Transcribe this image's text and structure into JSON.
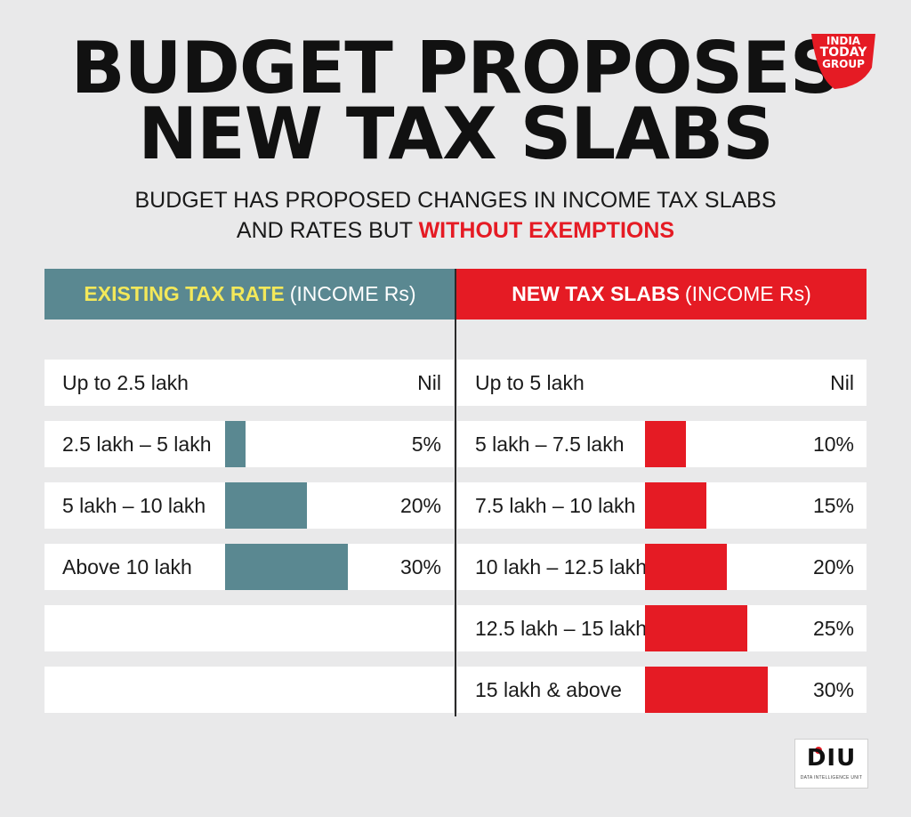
{
  "title": {
    "line1": "BUDGET PROPOSES",
    "line2": "NEW TAX SLABS"
  },
  "logo": {
    "line1": "INDIA",
    "line2": "TODAY",
    "line3": "GROUP",
    "color": "#e51b24"
  },
  "subtitle": {
    "line1": "BUDGET HAS PROPOSED CHANGES IN INCOME TAX SLABS",
    "line2_start": "AND RATES BUT ",
    "line2_highlight": "WITHOUT EXEMPTIONS"
  },
  "colors": {
    "existing": "#5a8891",
    "new": "#e51b24",
    "existing_highlight": "#f3e85a"
  },
  "footer": {
    "badge": "DIU",
    "tagline": "DATA INTELLIGENCE UNIT"
  },
  "chart_data": [
    {
      "type": "bar",
      "orientation": "horizontal",
      "title_bold": "EXISTING TAX RATE",
      "title_rest": "(INCOME Rs)",
      "categories": [
        "Up to 2.5 lakh",
        "2.5 lakh – 5 lakh",
        "5 lakh – 10  lakh",
        "Above 10 lakh"
      ],
      "rate_labels": [
        "Nil",
        "5%",
        "20%",
        "30%"
      ],
      "values": [
        0,
        5,
        20,
        30
      ],
      "unit": "%"
    },
    {
      "type": "bar",
      "orientation": "horizontal",
      "title_bold": "NEW TAX SLABS",
      "title_rest": "(INCOME Rs)",
      "categories": [
        "Up to 5 lakh",
        "5 lakh – 7.5 lakh",
        "7.5  lakh – 10 lakh",
        "10 lakh – 12.5 lakh",
        "12.5 lakh – 15 lakh",
        "15 lakh & above"
      ],
      "rate_labels": [
        "Nil",
        "10%",
        "15%",
        "20%",
        "25%",
        "30%"
      ],
      "values": [
        0,
        10,
        15,
        20,
        25,
        30
      ],
      "unit": "%"
    }
  ]
}
